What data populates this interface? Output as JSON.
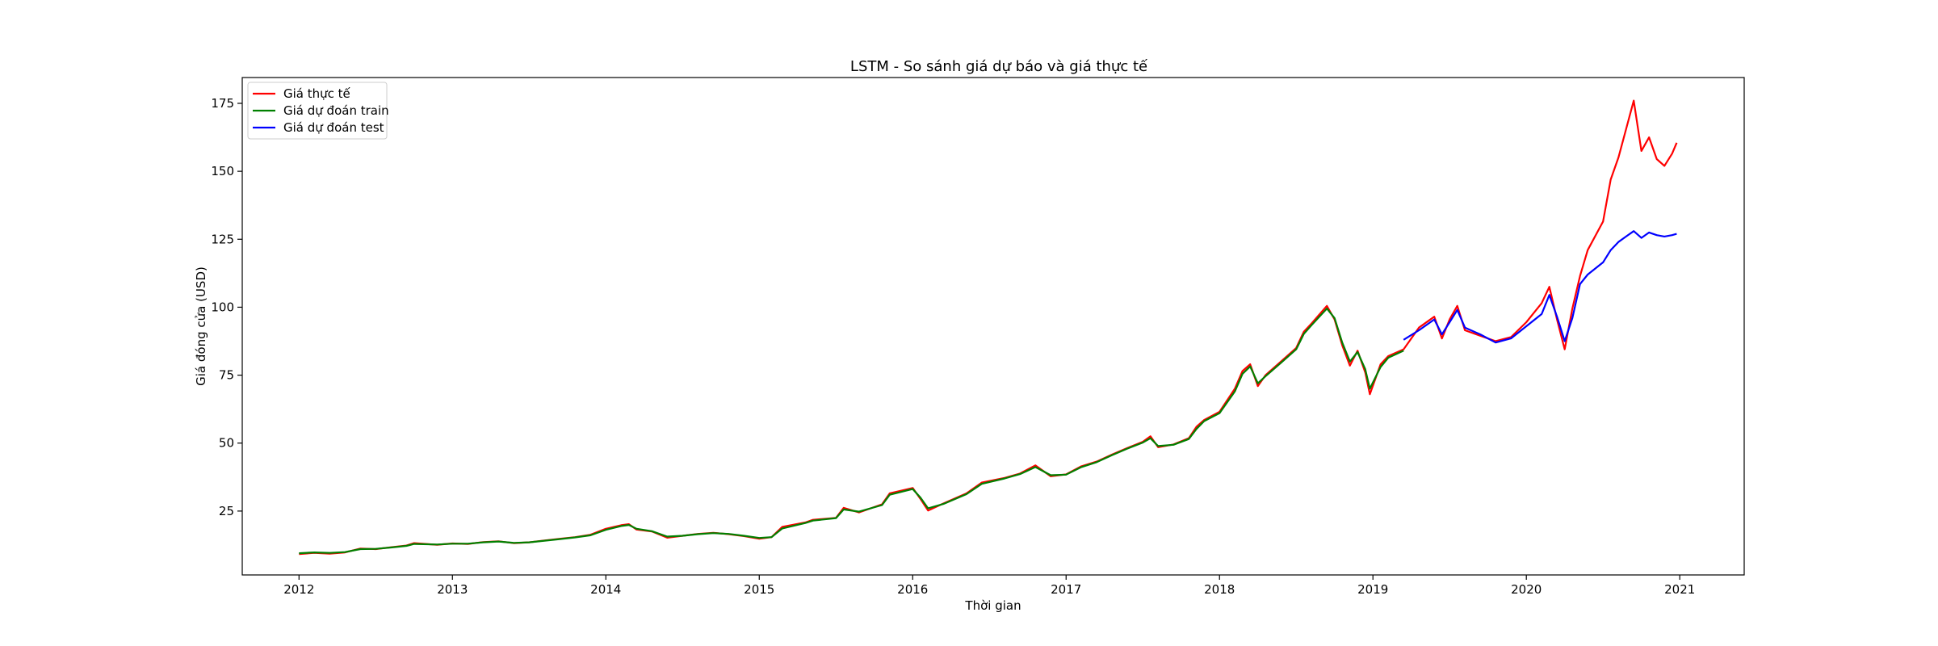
{
  "chart_data": {
    "type": "line",
    "title": "LSTM - So sánh giá dự báo và giá thực tế",
    "xlabel": "Thời gian",
    "ylabel": "Giá đóng cửa (USD)",
    "x_unit": "year",
    "xlim": [
      2011.63,
      2021.42
    ],
    "ylim": [
      1.5,
      184.5
    ],
    "xticks": [
      2012,
      2013,
      2014,
      2015,
      2016,
      2017,
      2018,
      2019,
      2020,
      2021
    ],
    "yticks": [
      25,
      50,
      75,
      100,
      125,
      150,
      175
    ],
    "grid": false,
    "legend_position": "top-left",
    "series": [
      {
        "name": "Giá thực tế",
        "color": "#ff0000",
        "points": [
          [
            2012.0,
            9.2
          ],
          [
            2012.1,
            9.6
          ],
          [
            2012.2,
            9.3
          ],
          [
            2012.3,
            9.8
          ],
          [
            2012.4,
            11.2
          ],
          [
            2012.5,
            11.0
          ],
          [
            2012.6,
            11.7
          ],
          [
            2012.7,
            12.3
          ],
          [
            2012.75,
            13.2
          ],
          [
            2012.9,
            12.6
          ],
          [
            2013.0,
            13.1
          ],
          [
            2013.1,
            12.9
          ],
          [
            2013.2,
            13.6
          ],
          [
            2013.3,
            13.9
          ],
          [
            2013.4,
            13.2
          ],
          [
            2013.5,
            13.5
          ],
          [
            2013.6,
            14.2
          ],
          [
            2013.7,
            14.8
          ],
          [
            2013.8,
            15.4
          ],
          [
            2013.9,
            16.3
          ],
          [
            2014.0,
            18.5
          ],
          [
            2014.1,
            19.8
          ],
          [
            2014.15,
            20.2
          ],
          [
            2014.2,
            18.2
          ],
          [
            2014.3,
            17.5
          ],
          [
            2014.4,
            15.2
          ],
          [
            2014.5,
            15.9
          ],
          [
            2014.6,
            16.6
          ],
          [
            2014.7,
            17.0
          ],
          [
            2014.8,
            16.5
          ],
          [
            2014.9,
            15.8
          ],
          [
            2015.0,
            14.8
          ],
          [
            2015.08,
            15.4
          ],
          [
            2015.15,
            19.2
          ],
          [
            2015.3,
            20.8
          ],
          [
            2015.35,
            21.8
          ],
          [
            2015.5,
            22.5
          ],
          [
            2015.55,
            26.2
          ],
          [
            2015.65,
            24.5
          ],
          [
            2015.8,
            27.5
          ],
          [
            2015.85,
            31.5
          ],
          [
            2016.0,
            33.5
          ],
          [
            2016.05,
            29.5
          ],
          [
            2016.1,
            25.2
          ],
          [
            2016.2,
            27.8
          ],
          [
            2016.35,
            31.5
          ],
          [
            2016.45,
            35.5
          ],
          [
            2016.6,
            37.2
          ],
          [
            2016.7,
            38.8
          ],
          [
            2016.8,
            41.8
          ],
          [
            2016.9,
            37.8
          ],
          [
            2017.0,
            38.5
          ],
          [
            2017.1,
            41.5
          ],
          [
            2017.2,
            43.2
          ],
          [
            2017.3,
            45.8
          ],
          [
            2017.4,
            48.2
          ],
          [
            2017.5,
            50.5
          ],
          [
            2017.55,
            52.5
          ],
          [
            2017.6,
            48.5
          ],
          [
            2017.7,
            49.5
          ],
          [
            2017.8,
            51.8
          ],
          [
            2017.85,
            56.0
          ],
          [
            2017.9,
            58.5
          ],
          [
            2018.0,
            61.5
          ],
          [
            2018.1,
            70.0
          ],
          [
            2018.15,
            76.5
          ],
          [
            2018.2,
            79.0
          ],
          [
            2018.25,
            71.0
          ],
          [
            2018.3,
            75.0
          ],
          [
            2018.4,
            80.0
          ],
          [
            2018.5,
            85.0
          ],
          [
            2018.55,
            91.0
          ],
          [
            2018.6,
            94.0
          ],
          [
            2018.7,
            100.5
          ],
          [
            2018.75,
            95.5
          ],
          [
            2018.8,
            86.0
          ],
          [
            2018.85,
            78.5
          ],
          [
            2018.9,
            84.0
          ],
          [
            2018.95,
            76.0
          ],
          [
            2018.98,
            68.0
          ],
          [
            2019.05,
            79.0
          ],
          [
            2019.1,
            82.0
          ],
          [
            2019.2,
            84.5
          ],
          [
            2019.3,
            92.5
          ],
          [
            2019.4,
            96.5
          ],
          [
            2019.45,
            88.5
          ],
          [
            2019.5,
            95.5
          ],
          [
            2019.55,
            100.5
          ],
          [
            2019.6,
            91.5
          ],
          [
            2019.7,
            89.5
          ],
          [
            2019.8,
            87.5
          ],
          [
            2019.9,
            89.0
          ],
          [
            2020.0,
            94.5
          ],
          [
            2020.1,
            101.5
          ],
          [
            2020.15,
            107.5
          ],
          [
            2020.2,
            95.5
          ],
          [
            2020.25,
            84.5
          ],
          [
            2020.3,
            99.5
          ],
          [
            2020.35,
            111.5
          ],
          [
            2020.4,
            121.0
          ],
          [
            2020.5,
            131.5
          ],
          [
            2020.55,
            147.0
          ],
          [
            2020.6,
            155.0
          ],
          [
            2020.65,
            165.5
          ],
          [
            2020.7,
            176.0
          ],
          [
            2020.75,
            157.5
          ],
          [
            2020.8,
            162.5
          ],
          [
            2020.85,
            154.5
          ],
          [
            2020.9,
            152.0
          ],
          [
            2020.95,
            156.5
          ],
          [
            2020.98,
            160.5
          ]
        ]
      },
      {
        "name": "Giá dự đoán train",
        "color": "#008000",
        "points": [
          [
            2012.0,
            9.5
          ],
          [
            2012.1,
            9.8
          ],
          [
            2012.2,
            9.6
          ],
          [
            2012.3,
            9.9
          ],
          [
            2012.4,
            11.0
          ],
          [
            2012.5,
            11.1
          ],
          [
            2012.6,
            11.6
          ],
          [
            2012.7,
            12.2
          ],
          [
            2012.75,
            12.9
          ],
          [
            2012.9,
            12.7
          ],
          [
            2013.0,
            13.0
          ],
          [
            2013.1,
            13.0
          ],
          [
            2013.2,
            13.5
          ],
          [
            2013.3,
            13.8
          ],
          [
            2013.4,
            13.3
          ],
          [
            2013.5,
            13.5
          ],
          [
            2013.6,
            14.1
          ],
          [
            2013.7,
            14.7
          ],
          [
            2013.8,
            15.3
          ],
          [
            2013.9,
            16.1
          ],
          [
            2014.0,
            18.1
          ],
          [
            2014.1,
            19.5
          ],
          [
            2014.15,
            19.9
          ],
          [
            2014.2,
            18.5
          ],
          [
            2014.3,
            17.6
          ],
          [
            2014.4,
            15.6
          ],
          [
            2014.5,
            15.9
          ],
          [
            2014.6,
            16.5
          ],
          [
            2014.7,
            16.9
          ],
          [
            2014.8,
            16.6
          ],
          [
            2014.9,
            15.9
          ],
          [
            2015.0,
            15.1
          ],
          [
            2015.08,
            15.4
          ],
          [
            2015.15,
            18.6
          ],
          [
            2015.3,
            20.6
          ],
          [
            2015.35,
            21.5
          ],
          [
            2015.5,
            22.4
          ],
          [
            2015.55,
            25.6
          ],
          [
            2015.65,
            24.8
          ],
          [
            2015.8,
            27.2
          ],
          [
            2015.85,
            31.0
          ],
          [
            2016.0,
            33.1
          ],
          [
            2016.05,
            30.0
          ],
          [
            2016.1,
            26.0
          ],
          [
            2016.2,
            27.6
          ],
          [
            2016.35,
            31.2
          ],
          [
            2016.45,
            35.0
          ],
          [
            2016.6,
            37.0
          ],
          [
            2016.7,
            38.6
          ],
          [
            2016.8,
            41.2
          ],
          [
            2016.9,
            38.2
          ],
          [
            2017.0,
            38.4
          ],
          [
            2017.1,
            41.2
          ],
          [
            2017.2,
            43.0
          ],
          [
            2017.3,
            45.6
          ],
          [
            2017.4,
            48.0
          ],
          [
            2017.5,
            50.2
          ],
          [
            2017.55,
            51.8
          ],
          [
            2017.6,
            48.9
          ],
          [
            2017.7,
            49.4
          ],
          [
            2017.8,
            51.5
          ],
          [
            2017.85,
            55.2
          ],
          [
            2017.9,
            58.1
          ],
          [
            2018.0,
            61.0
          ],
          [
            2018.1,
            69.0
          ],
          [
            2018.15,
            75.5
          ],
          [
            2018.2,
            78.2
          ],
          [
            2018.25,
            72.0
          ],
          [
            2018.3,
            74.6
          ],
          [
            2018.4,
            79.5
          ],
          [
            2018.5,
            84.5
          ],
          [
            2018.55,
            90.2
          ],
          [
            2018.6,
            93.4
          ],
          [
            2018.7,
            99.5
          ],
          [
            2018.75,
            96.0
          ],
          [
            2018.8,
            87.0
          ],
          [
            2018.85,
            80.0
          ],
          [
            2018.9,
            83.5
          ],
          [
            2018.95,
            77.2
          ],
          [
            2018.98,
            70.0
          ],
          [
            2019.05,
            78.0
          ],
          [
            2019.1,
            81.4
          ],
          [
            2019.2,
            84.0
          ]
        ]
      },
      {
        "name": "Giá dự đoán test",
        "color": "#0000ff",
        "points": [
          [
            2019.2,
            88.0
          ],
          [
            2019.3,
            91.5
          ],
          [
            2019.4,
            95.5
          ],
          [
            2019.45,
            90.0
          ],
          [
            2019.5,
            94.5
          ],
          [
            2019.55,
            99.0
          ],
          [
            2019.6,
            92.5
          ],
          [
            2019.7,
            90.0
          ],
          [
            2019.8,
            87.0
          ],
          [
            2019.9,
            88.5
          ],
          [
            2020.0,
            93.0
          ],
          [
            2020.1,
            97.5
          ],
          [
            2020.15,
            104.5
          ],
          [
            2020.2,
            96.5
          ],
          [
            2020.25,
            87.5
          ],
          [
            2020.3,
            96.0
          ],
          [
            2020.35,
            108.5
          ],
          [
            2020.4,
            112.0
          ],
          [
            2020.5,
            116.5
          ],
          [
            2020.55,
            121.0
          ],
          [
            2020.6,
            124.0
          ],
          [
            2020.65,
            126.0
          ],
          [
            2020.7,
            128.0
          ],
          [
            2020.75,
            125.5
          ],
          [
            2020.8,
            127.5
          ],
          [
            2020.85,
            126.5
          ],
          [
            2020.9,
            126.0
          ],
          [
            2020.95,
            126.5
          ],
          [
            2020.98,
            127.0
          ]
        ]
      }
    ]
  }
}
